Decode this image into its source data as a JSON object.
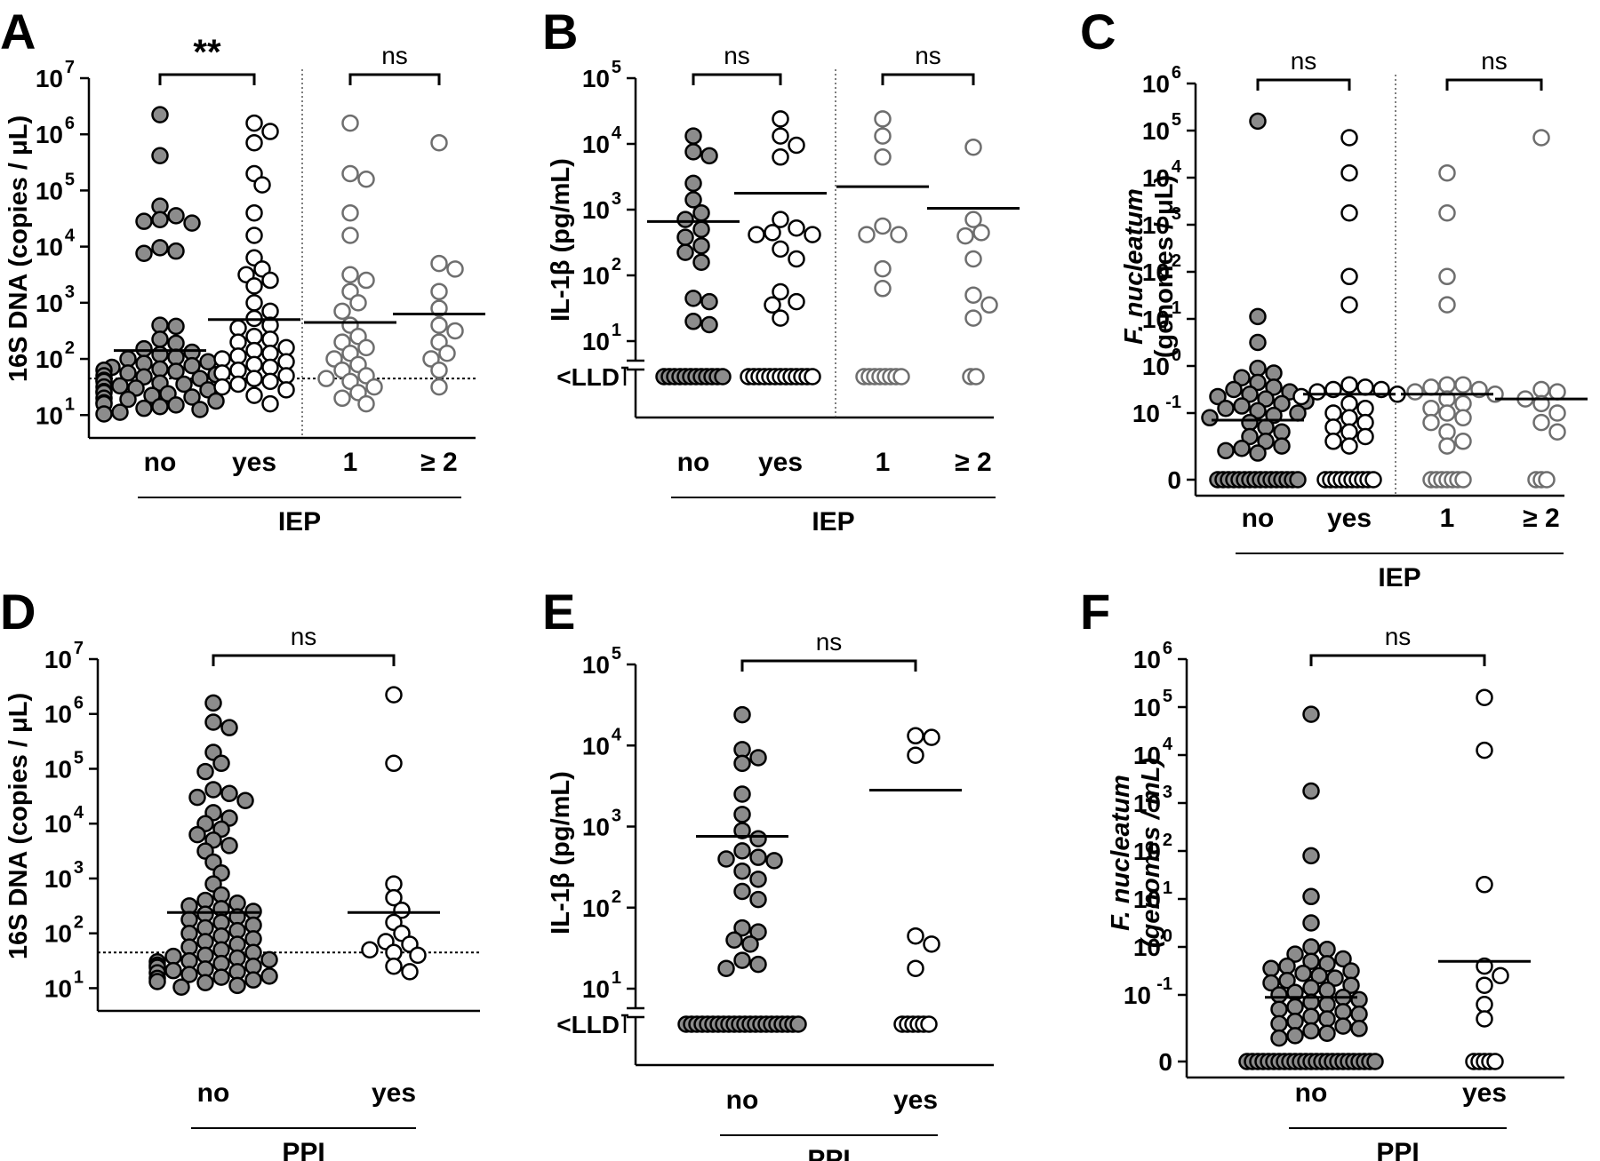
{
  "figure": {
    "colors": {
      "filled": "#8c8c8c",
      "open": "#ffffff",
      "stroke": "#000000",
      "gray_stroke": "#6e6e6e"
    }
  },
  "chart_data": [
    {
      "panel": "A",
      "type": "scatter",
      "scale": "log",
      "ylabel": "16S DNA (copies / μL)",
      "yticks": [
        {
          "exp": "1"
        },
        {
          "exp": "2"
        },
        {
          "exp": "3"
        },
        {
          "exp": "4"
        },
        {
          "exp": "5"
        },
        {
          "exp": "6"
        },
        {
          "exp": "7"
        }
      ],
      "ylim": [
        1,
        7
      ],
      "categories": [
        "no",
        "yes",
        "1",
        "≥ 2"
      ],
      "group_label": "IEP",
      "group_span": [
        0,
        3
      ],
      "divider_after": 1,
      "detection_line": 1.65,
      "brackets": [
        {
          "from": 0,
          "to": 1,
          "label": "**",
          "bold": true
        },
        {
          "from": 2,
          "to": 3,
          "label": "ns",
          "bold": false
        }
      ],
      "series": [
        {
          "style": "filled",
          "median": 2.15,
          "values": [
            6.35,
            5.62,
            4.72,
            4.55,
            4.48,
            4.45,
            4.42,
            3.98,
            3.92,
            3.88,
            2.6,
            2.58,
            2.35,
            2.28,
            2.18,
            2.12,
            2.08,
            2.03,
            2.0,
            1.95,
            1.92,
            1.88,
            1.85,
            1.82,
            1.8,
            1.78,
            1.75,
            1.72,
            1.7,
            1.68,
            1.65,
            1.62,
            1.6,
            1.57,
            1.55,
            1.52,
            1.5,
            1.48,
            1.45,
            1.42,
            1.4,
            1.38,
            1.35,
            1.32,
            1.3,
            1.28,
            1.25,
            1.22,
            1.2,
            1.18,
            1.15,
            1.12,
            1.1,
            1.05,
            1.02
          ]
        },
        {
          "style": "open",
          "median": 2.7,
          "values": [
            6.2,
            6.05,
            5.85,
            5.3,
            5.1,
            4.6,
            4.2,
            3.8,
            3.6,
            3.5,
            3.4,
            3.3,
            3.0,
            2.85,
            2.72,
            2.6,
            2.55,
            2.4,
            2.35,
            2.3,
            2.2,
            2.15,
            2.1,
            2.05,
            2.0,
            1.95,
            1.9,
            1.85,
            1.8,
            1.75,
            1.7,
            1.65,
            1.6,
            1.55,
            1.5,
            1.45,
            1.35,
            1.2
          ]
        },
        {
          "style": "open-gray",
          "median": 2.65,
          "values": [
            6.2,
            5.3,
            5.2,
            4.6,
            4.2,
            3.5,
            3.4,
            3.2,
            3.0,
            2.85,
            2.6,
            2.4,
            2.3,
            2.2,
            2.1,
            2.0,
            1.9,
            1.8,
            1.7,
            1.65,
            1.6,
            1.5,
            1.4,
            1.3,
            1.2
          ]
        },
        {
          "style": "open-gray",
          "median": 2.8,
          "values": [
            5.85,
            3.7,
            3.6,
            3.2,
            2.9,
            2.6,
            2.5,
            2.3,
            2.1,
            2.0,
            1.8,
            1.5
          ]
        }
      ]
    },
    {
      "panel": "B",
      "type": "scatter",
      "scale": "log-lld",
      "ylabel": "IL-1β (pg/mL)",
      "yticks": [
        {
          "exp": "1"
        },
        {
          "exp": "2"
        },
        {
          "exp": "3"
        },
        {
          "exp": "4"
        },
        {
          "exp": "5"
        }
      ],
      "lld_label": "<LLD",
      "ylim": [
        1,
        5
      ],
      "categories": [
        "no",
        "yes",
        "1",
        "≥ 2"
      ],
      "group_label": "IEP",
      "group_span": [
        0,
        3
      ],
      "divider_after": 1,
      "brackets": [
        {
          "from": 0,
          "to": 1,
          "label": "ns",
          "bold": false
        },
        {
          "from": 2,
          "to": 3,
          "label": "ns",
          "bold": false
        }
      ],
      "series": [
        {
          "style": "filled",
          "median": 2.82,
          "lld_count": 12,
          "values": [
            4.12,
            3.88,
            3.82,
            3.4,
            3.15,
            2.95,
            2.85,
            2.7,
            2.58,
            2.45,
            2.35,
            2.2,
            1.65,
            1.6,
            1.3,
            1.25
          ]
        },
        {
          "style": "open",
          "median": 3.25,
          "lld_count": 13,
          "values": [
            4.38,
            4.12,
            3.98,
            3.8,
            2.85,
            2.72,
            2.65,
            2.62,
            2.62,
            2.4,
            2.25,
            1.75,
            1.6,
            1.55,
            1.35
          ]
        },
        {
          "style": "open-gray",
          "median": 3.35,
          "lld_count": 8,
          "values": [
            4.38,
            4.12,
            3.8,
            2.75,
            2.62,
            2.62,
            2.1,
            1.8
          ]
        },
        {
          "style": "open-gray",
          "median": 3.02,
          "lld_count": 2,
          "values": [
            3.95,
            2.85,
            2.65,
            2.6,
            2.25,
            1.7,
            1.55,
            1.35
          ]
        }
      ]
    },
    {
      "panel": "C",
      "type": "scatter",
      "scale": "log-zero",
      "ylabel": "F. nucleatum (genomes / μL)",
      "ylabel_italic": "F. nucleatum",
      "ylabel_rest": "(genomes / μL)",
      "yticks": [
        {
          "base": "0",
          "exp": ""
        },
        {
          "exp": "-1"
        },
        {
          "exp": "0"
        },
        {
          "exp": "1"
        },
        {
          "exp": "2"
        },
        {
          "exp": "3"
        },
        {
          "exp": "4"
        },
        {
          "exp": "5"
        },
        {
          "exp": "6"
        }
      ],
      "ylim": [
        -1,
        6
      ],
      "categories": [
        "no",
        "yes",
        "1",
        "≥ 2"
      ],
      "group_label": "IEP",
      "group_span": [
        0,
        3
      ],
      "divider_after": 1,
      "brackets": [
        {
          "from": 0,
          "to": 1,
          "label": "ns",
          "bold": false
        },
        {
          "from": 2,
          "to": 3,
          "label": "ns",
          "bold": false
        }
      ],
      "series": [
        {
          "style": "filled",
          "median": -1.15,
          "zero_count": 16,
          "values": [
            5.2,
            1.05,
            0.5,
            -0.05,
            -0.15,
            -0.25,
            -0.35,
            -0.45,
            -0.5,
            -0.55,
            -0.6,
            -0.65,
            -0.7,
            -0.75,
            -0.8,
            -0.85,
            -0.9,
            -0.95,
            -1.0,
            -1.05,
            -1.1,
            -1.2,
            -1.3,
            -1.4,
            -1.5,
            -1.6,
            -1.7,
            -1.75,
            -1.8,
            -1.85
          ]
        },
        {
          "style": "open",
          "median": -0.6,
          "zero_count": 10,
          "values": [
            4.85,
            4.1,
            3.25,
            1.9,
            1.3,
            -0.4,
            -0.45,
            -0.5,
            -0.5,
            -0.55,
            -0.6,
            -0.65,
            -0.8,
            -0.9,
            -1.0,
            -1.1,
            -1.2,
            -1.3,
            -1.4,
            -1.5,
            -1.6,
            -1.7
          ]
        },
        {
          "style": "open-gray",
          "median": -0.6,
          "zero_count": 7,
          "values": [
            4.1,
            3.25,
            1.9,
            1.3,
            -0.4,
            -0.4,
            -0.45,
            -0.5,
            -0.55,
            -0.6,
            -0.7,
            -0.8,
            -0.9,
            -1.0,
            -1.1,
            -1.2,
            -1.4,
            -1.6,
            -1.7
          ]
        },
        {
          "style": "open-gray",
          "median": -0.7,
          "zero_count": 3,
          "values": [
            4.85,
            -0.5,
            -0.55,
            -0.7,
            -0.8,
            -1.0,
            -1.2,
            -1.4
          ]
        }
      ]
    },
    {
      "panel": "D",
      "type": "scatter",
      "scale": "log",
      "ylabel": "16S DNA (copies / μL)",
      "yticks": [
        {
          "exp": "1"
        },
        {
          "exp": "2"
        },
        {
          "exp": "3"
        },
        {
          "exp": "4"
        },
        {
          "exp": "5"
        },
        {
          "exp": "6"
        },
        {
          "exp": "7"
        }
      ],
      "ylim": [
        1,
        7
      ],
      "categories": [
        "no",
        "yes"
      ],
      "group_label": "PPI",
      "group_span": [
        0,
        1
      ],
      "detection_line": 1.65,
      "brackets": [
        {
          "from": 0,
          "to": 1,
          "label": "ns",
          "bold": false
        }
      ],
      "series": [
        {
          "style": "filled",
          "median": 2.38,
          "values": [
            6.2,
            5.85,
            5.75,
            5.3,
            5.1,
            4.95,
            4.62,
            4.55,
            4.48,
            4.42,
            4.2,
            4.1,
            4.0,
            3.9,
            3.8,
            3.7,
            3.6,
            3.5,
            3.3,
            3.1,
            2.9,
            2.7,
            2.6,
            2.55,
            2.5,
            2.45,
            2.4,
            2.35,
            2.3,
            2.25,
            2.2,
            2.15,
            2.1,
            2.05,
            2.0,
            1.95,
            1.9,
            1.85,
            1.8,
            1.75,
            1.7,
            1.65,
            1.6,
            1.58,
            1.55,
            1.52,
            1.5,
            1.48,
            1.45,
            1.42,
            1.4,
            1.38,
            1.35,
            1.32,
            1.3,
            1.28,
            1.25,
            1.22,
            1.2,
            1.18,
            1.15,
            1.12,
            1.1,
            1.05,
            1.02
          ]
        },
        {
          "style": "open",
          "median": 2.38,
          "values": [
            6.35,
            5.1,
            2.9,
            2.65,
            2.42,
            2.2,
            2.0,
            1.85,
            1.8,
            1.7,
            1.65,
            1.6,
            1.4,
            1.3
          ]
        }
      ]
    },
    {
      "panel": "E",
      "type": "scatter",
      "scale": "log-lld",
      "ylabel": "IL-1β (pg/mL)",
      "yticks": [
        {
          "exp": "1"
        },
        {
          "exp": "2"
        },
        {
          "exp": "3"
        },
        {
          "exp": "4"
        },
        {
          "exp": "5"
        }
      ],
      "lld_label": "<LLD",
      "ylim": [
        1,
        5
      ],
      "categories": [
        "no",
        "yes"
      ],
      "group_label": "PPI",
      "group_span": [
        0,
        1
      ],
      "brackets": [
        {
          "from": 0,
          "to": 1,
          "label": "ns",
          "bold": false
        }
      ],
      "series": [
        {
          "style": "filled",
          "median": 2.88,
          "lld_count": 22,
          "values": [
            4.38,
            3.95,
            3.85,
            3.78,
            3.4,
            3.15,
            2.95,
            2.85,
            2.7,
            2.62,
            2.6,
            2.58,
            2.45,
            2.35,
            2.2,
            2.1,
            1.75,
            1.7,
            1.6,
            1.55,
            1.35,
            1.3,
            1.25
          ]
        },
        {
          "style": "open",
          "median": 3.45,
          "lld_count": 6,
          "values": [
            4.12,
            4.1,
            3.88,
            1.65,
            1.55,
            1.25
          ]
        }
      ]
    },
    {
      "panel": "F",
      "type": "scatter",
      "scale": "log-zero",
      "ylabel": "F. nucleatum (genomes / mL)",
      "ylabel_italic": "F. nucleatum",
      "ylabel_rest": "(genomes / mL)",
      "ylabel_rest_italic": true,
      "yticks": [
        {
          "base": "0",
          "exp": ""
        },
        {
          "exp": "-1"
        },
        {
          "exp": "0"
        },
        {
          "exp": "1"
        },
        {
          "exp": "2"
        },
        {
          "exp": "3"
        },
        {
          "exp": "4"
        },
        {
          "exp": "5"
        },
        {
          "exp": "6"
        }
      ],
      "ylim": [
        -1,
        6
      ],
      "categories": [
        "no",
        "yes"
      ],
      "group_label": "PPI",
      "group_span": [
        0,
        1
      ],
      "brackets": [
        {
          "from": 0,
          "to": 1,
          "label": "ns",
          "bold": false
        }
      ],
      "series": [
        {
          "style": "filled",
          "median": -1.05,
          "zero_count": 25,
          "values": [
            4.85,
            3.25,
            1.9,
            1.05,
            0.5,
            0.0,
            -0.05,
            -0.15,
            -0.25,
            -0.3,
            -0.35,
            -0.4,
            -0.45,
            -0.5,
            -0.55,
            -0.6,
            -0.65,
            -0.7,
            -0.75,
            -0.8,
            -0.85,
            -0.9,
            -0.95,
            -1.0,
            -1.05,
            -1.1,
            -1.15,
            -1.2,
            -1.25,
            -1.3,
            -1.35,
            -1.4,
            -1.45,
            -1.5,
            -1.55,
            -1.6,
            -1.65,
            -1.7,
            -1.75,
            -1.8,
            -1.85,
            -1.9
          ]
        },
        {
          "style": "open",
          "median": -0.3,
          "zero_count": 5,
          "values": [
            5.2,
            4.1,
            1.3,
            -0.4,
            -0.6,
            -0.8,
            -1.2,
            -1.5
          ]
        }
      ]
    }
  ]
}
